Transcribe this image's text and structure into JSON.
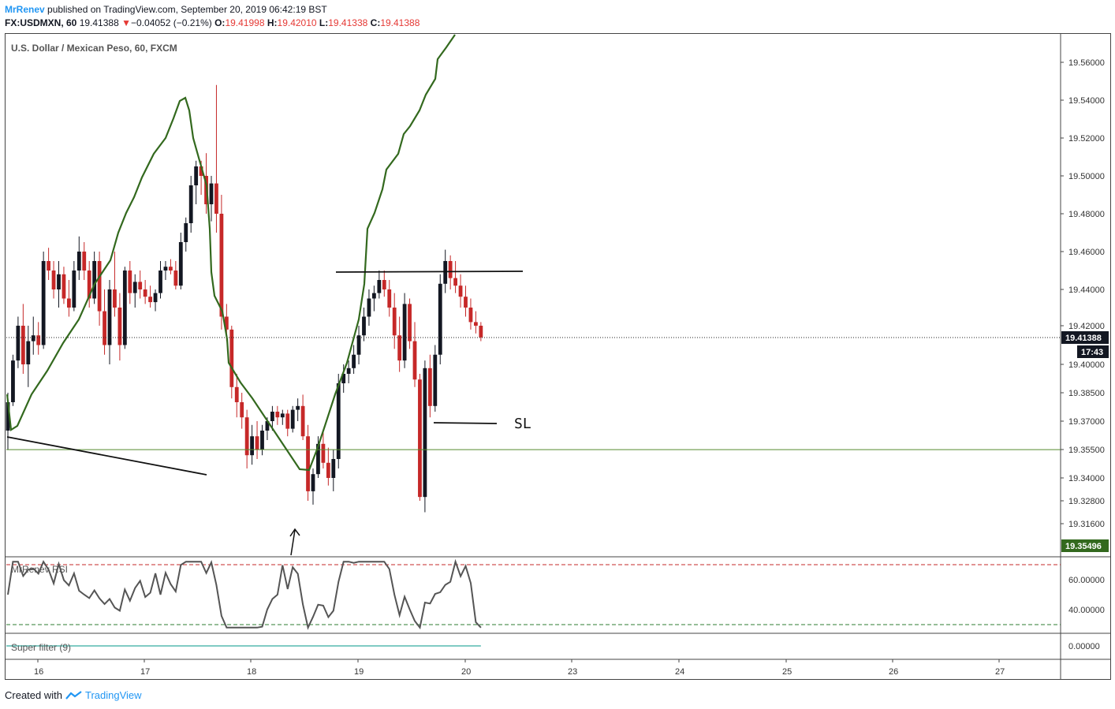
{
  "header": {
    "author": "MrRenev",
    "published_text": "published on TradingView.com, September 20, 2019 06:42:19 BST",
    "symbol_text": "FX:USDMXN, 60",
    "last": "19.41388",
    "change_text": "−0.04052 (−0.21%)",
    "o_label": "O:",
    "o_value": "19.41998",
    "h_label": "H:",
    "h_value": "19.42010",
    "l_label": "L:",
    "l_value": "19.41338",
    "c_label": "C:",
    "c_value": "19.41388"
  },
  "pane_titles": {
    "main": "U.S. Dollar / Mexican Peso, 60, FXCM",
    "rsi": "MrRenev RSI",
    "filter": "Super filter (9)"
  },
  "price_badges": {
    "last": "19.41388",
    "countdown": "17:43",
    "level": "19.35496"
  },
  "annotations": {
    "sl_label": "SL"
  },
  "footer": {
    "created_with": "Created with",
    "brand": "TradingView"
  },
  "colors": {
    "up": "#131722",
    "down": "#c62828",
    "envelope": "#33691e",
    "hline": "#558b2f",
    "rsi_line": "#555555",
    "rsi_bands": "#c62828",
    "rsi_lower_band": "#2e7d32",
    "filter_line": "#80cbc4",
    "accent": "#2196f3"
  },
  "chart_data": [
    {
      "type": "candlestick",
      "title": "U.S. Dollar / Mexican Peso, 60, FXCM",
      "y_ticks": [
        19.56,
        19.54,
        19.52,
        19.5,
        19.48,
        19.46,
        19.44,
        19.42,
        19.4,
        19.385,
        19.37,
        19.355,
        19.34,
        19.328,
        19.316
      ],
      "x_ticks": [
        "16",
        "17",
        "18",
        "19",
        "20",
        "23",
        "24",
        "25",
        "26",
        "27"
      ],
      "last_price": 19.41388,
      "horizontal_level": 19.35496,
      "ohlc": [
        [
          19.365,
          19.385,
          19.355,
          19.38
        ],
        [
          19.38,
          19.405,
          19.378,
          19.402
        ],
        [
          19.402,
          19.425,
          19.398,
          19.42
        ],
        [
          19.42,
          19.432,
          19.395,
          19.4
        ],
        [
          19.4,
          19.42,
          19.388,
          19.412
        ],
        [
          19.412,
          19.425,
          19.405,
          19.415
        ],
        [
          19.415,
          19.422,
          19.405,
          19.41
        ],
        [
          19.41,
          19.46,
          19.408,
          19.455
        ],
        [
          19.455,
          19.462,
          19.445,
          19.45
        ],
        [
          19.45,
          19.455,
          19.435,
          19.44
        ],
        [
          19.44,
          19.455,
          19.43,
          19.448
        ],
        [
          19.448,
          19.452,
          19.432,
          19.435
        ],
        [
          19.435,
          19.445,
          19.425,
          19.43
        ],
        [
          19.43,
          19.455,
          19.428,
          19.45
        ],
        [
          19.45,
          19.468,
          19.445,
          19.46
        ],
        [
          19.46,
          19.465,
          19.445,
          19.45
        ],
        [
          19.45,
          19.455,
          19.43,
          19.435
        ],
        [
          19.435,
          19.46,
          19.432,
          19.455
        ],
        [
          19.455,
          19.46,
          19.42,
          19.428
        ],
        [
          19.428,
          19.44,
          19.405,
          19.41
        ],
        [
          19.41,
          19.445,
          19.4,
          19.44
        ],
        [
          19.44,
          19.46,
          19.425,
          19.43
        ],
        [
          19.43,
          19.438,
          19.402,
          19.41
        ],
        [
          19.41,
          19.452,
          19.408,
          19.45
        ],
        [
          19.45,
          19.455,
          19.432,
          19.438
        ],
        [
          19.438,
          19.448,
          19.43,
          19.444
        ],
        [
          19.444,
          19.45,
          19.435,
          19.44
        ],
        [
          19.44,
          19.445,
          19.432,
          19.436
        ],
        [
          19.436,
          19.442,
          19.43,
          19.433
        ],
        [
          19.433,
          19.44,
          19.428,
          19.438
        ],
        [
          19.438,
          19.455,
          19.435,
          19.45
        ],
        [
          19.45,
          19.455,
          19.445,
          19.452
        ],
        [
          19.452,
          19.456,
          19.448,
          19.45
        ],
        [
          19.45,
          19.455,
          19.44,
          19.442
        ],
        [
          19.442,
          19.47,
          19.44,
          19.465
        ],
        [
          19.465,
          19.478,
          19.46,
          19.475
        ],
        [
          19.475,
          19.5,
          19.47,
          19.495
        ],
        [
          19.495,
          19.508,
          19.485,
          19.505
        ],
        [
          19.505,
          19.508,
          19.49,
          19.5
        ],
        [
          19.5,
          19.512,
          19.48,
          19.485
        ],
        [
          19.485,
          19.5,
          19.476,
          19.496
        ],
        [
          19.496,
          19.548,
          19.47,
          19.48
        ],
        [
          19.48,
          19.49,
          19.418,
          19.425
        ],
        [
          19.425,
          19.432,
          19.412,
          19.418
        ],
        [
          19.418,
          19.42,
          19.382,
          19.388
        ],
        [
          19.388,
          19.395,
          19.372,
          19.38
        ],
        [
          19.38,
          19.385,
          19.366,
          19.372
        ],
        [
          19.372,
          19.376,
          19.345,
          19.352
        ],
        [
          19.352,
          19.368,
          19.347,
          19.362
        ],
        [
          19.362,
          19.37,
          19.35,
          19.355
        ],
        [
          19.355,
          19.368,
          19.352,
          19.365
        ],
        [
          19.365,
          19.372,
          19.36,
          19.37
        ],
        [
          19.37,
          19.378,
          19.365,
          19.375
        ],
        [
          19.375,
          19.378,
          19.368,
          19.372
        ],
        [
          19.372,
          19.376,
          19.368,
          19.374
        ],
        [
          19.374,
          19.376,
          19.362,
          19.366
        ],
        [
          19.366,
          19.378,
          19.364,
          19.376
        ],
        [
          19.376,
          19.382,
          19.37,
          19.378
        ],
        [
          19.378,
          19.384,
          19.36,
          19.362
        ],
        [
          19.362,
          19.368,
          19.328,
          19.333
        ],
        [
          19.333,
          19.345,
          19.326,
          19.342
        ],
        [
          19.342,
          19.362,
          19.34,
          19.358
        ],
        [
          19.358,
          19.364,
          19.345,
          19.348
        ],
        [
          19.348,
          19.356,
          19.336,
          19.34
        ],
        [
          19.34,
          19.355,
          19.333,
          19.35
        ],
        [
          19.35,
          19.395,
          19.345,
          19.39
        ],
        [
          19.39,
          19.4,
          19.385,
          19.395
        ],
        [
          19.395,
          19.402,
          19.39,
          19.398
        ],
        [
          19.398,
          19.41,
          19.395,
          19.405
        ],
        [
          19.405,
          19.42,
          19.4,
          19.415
        ],
        [
          19.415,
          19.43,
          19.412,
          19.425
        ],
        [
          19.425,
          19.44,
          19.42,
          19.435
        ],
        [
          19.435,
          19.442,
          19.428,
          19.438
        ],
        [
          19.438,
          19.45,
          19.435,
          19.445
        ],
        [
          19.445,
          19.45,
          19.436,
          19.44
        ],
        [
          19.44,
          19.445,
          19.425,
          19.43
        ],
        [
          19.43,
          19.438,
          19.408,
          19.415
        ],
        [
          19.415,
          19.425,
          19.396,
          19.402
        ],
        [
          19.402,
          19.438,
          19.398,
          19.432
        ],
        [
          19.432,
          19.435,
          19.408,
          19.412
        ],
        [
          19.412,
          19.422,
          19.388,
          19.392
        ],
        [
          19.392,
          19.395,
          19.328,
          19.33
        ],
        [
          19.33,
          19.402,
          19.322,
          19.398
        ],
        [
          19.398,
          19.405,
          19.372,
          19.378
        ],
        [
          19.378,
          19.41,
          19.375,
          19.405
        ],
        [
          19.405,
          19.448,
          19.4,
          19.443
        ],
        [
          19.443,
          19.461,
          19.438,
          19.455
        ],
        [
          19.455,
          19.458,
          19.44,
          19.446
        ],
        [
          19.446,
          19.455,
          19.438,
          19.442
        ],
        [
          19.442,
          19.448,
          19.43,
          19.436
        ],
        [
          19.436,
          19.442,
          19.425,
          19.43
        ],
        [
          19.43,
          19.435,
          19.418,
          19.422
        ],
        [
          19.422,
          19.428,
          19.416,
          19.42
        ],
        [
          19.42,
          19.422,
          19.412,
          19.414
        ]
      ]
    },
    {
      "type": "line",
      "title": "MrRenev RSI",
      "y_ticks": [
        60.0,
        40.0
      ],
      "y_tick_labels": [
        "60.00000",
        "40.00000"
      ],
      "upper_band": 70,
      "lower_band": 30
    },
    {
      "type": "line",
      "title": "Super filter (9)",
      "y_ticks": [
        0.0
      ],
      "y_tick_labels": [
        "0.00000"
      ],
      "values": [
        0
      ]
    }
  ]
}
